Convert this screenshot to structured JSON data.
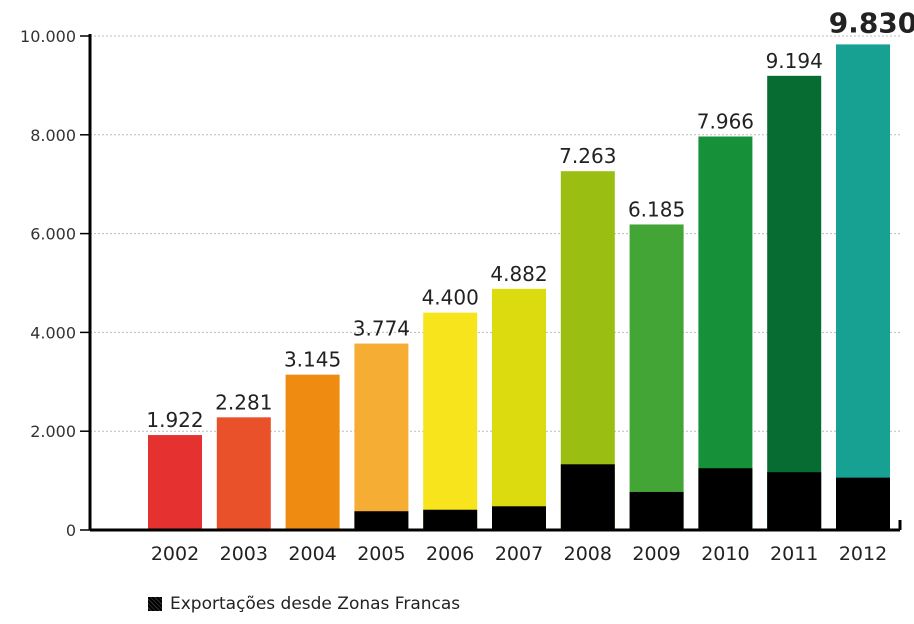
{
  "chart_data": {
    "type": "bar",
    "categories": [
      "2002",
      "2003",
      "2004",
      "2005",
      "2006",
      "2007",
      "2008",
      "2009",
      "2010",
      "2011",
      "2012"
    ],
    "series": [
      {
        "values": [
          1922,
          2281,
          3145,
          3774,
          4400,
          4882,
          7263,
          6185,
          7966,
          9194,
          9830
        ]
      },
      {
        "name": "Exportações desde Zonas Francas",
        "values": [
          0,
          0,
          0,
          380,
          410,
          480,
          1330,
          770,
          1250,
          1170,
          1060
        ]
      }
    ],
    "value_labels": [
      "1.922",
      "2.281",
      "3.145",
      "3.774",
      "4.400",
      "4.882",
      "7.263",
      "6.185",
      "7.966",
      "9.194",
      "9.830"
    ],
    "y_ticks": [
      "0",
      "2.000",
      "4.000",
      "6.000",
      "8.000",
      "10.000"
    ],
    "y_tick_values": [
      0,
      2000,
      4000,
      6000,
      8000,
      10000
    ],
    "ylim": [
      0,
      10000
    ],
    "grid": true,
    "legend_position": "bottom-left",
    "colors": {
      "bars": [
        "#e53230",
        "#e8512a",
        "#ef8b10",
        "#f5ad34",
        "#f7e41c",
        "#dcdb10",
        "#9abf12",
        "#43a536",
        "#17903a",
        "#066c32",
        "#17a192"
      ],
      "stack": "#000000",
      "grid": "#bbbbbb",
      "axis": "#000000"
    }
  },
  "legend": {
    "label": "Exportações desde Zonas Francas"
  }
}
